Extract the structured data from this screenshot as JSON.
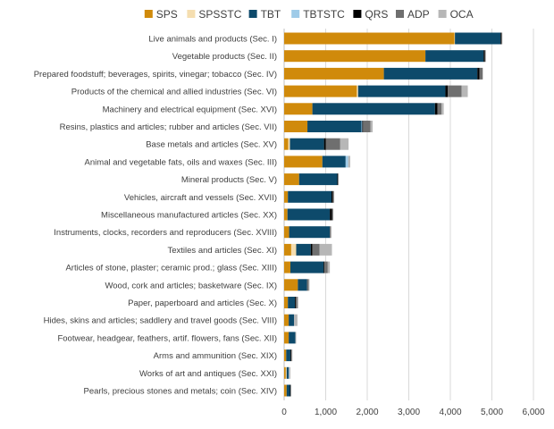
{
  "chart_data": {
    "type": "bar",
    "orientation": "horizontal",
    "stacked": true,
    "title": "",
    "xlabel": "",
    "ylabel": "",
    "xlim": [
      0,
      6000
    ],
    "x_ticks": [
      0,
      1000,
      2000,
      3000,
      4000,
      5000,
      6000
    ],
    "x_tick_labels": [
      "0",
      "1,000",
      "2,000",
      "3,000",
      "4,000",
      "5,000",
      "6,000"
    ],
    "grid": "vertical",
    "legend_position": "top",
    "categories": [
      "Live animals and products (Sec. I)",
      "Vegetable products (Sec. II)",
      "Prepared foodstuff; beverages, spirits, vinegar; tobacco (Sec. IV)",
      "Products of the chemical and allied industries (Sec. VI)",
      "Machinery and electrical equipment (Sec. XVI)",
      "Resins, plastics and articles; rubber and articles (Sec. VII)",
      "Base metals and articles (Sec. XV)",
      "Animal and vegetable fats, oils and waxes (Sec. III)",
      "Mineral products (Sec. V)",
      "Vehicles, aircraft and vessels (Sec. XVII)",
      "Miscellaneous manufactured articles (Sec. XX)",
      "Instruments, clocks, recorders and reproducers (Sec. XVIII)",
      "Textiles and articles (Sec. XI)",
      "Articles of stone, plaster; ceramic prod.; glass (Sec. XIII)",
      "Wood, cork and articles; basketware (Sec. IX)",
      "Paper, paperboard and articles (Sec. X)",
      "Hides, skins and articles; saddlery and travel goods (Sec. VIII)",
      "Footwear, headgear, feathers, artif. flowers, fans (Sec. XII)",
      "Arms and ammunition (Sec. XIX)",
      "Works of art and antiques (Sec. XXI)",
      "Pearls, precious stones and metals; coin (Sec. XIV)"
    ],
    "series": [
      {
        "name": "SPS",
        "color": "#d08a0b",
        "values": [
          4100,
          3400,
          2400,
          1750,
          680,
          560,
          100,
          920,
          360,
          90,
          80,
          120,
          170,
          150,
          330,
          90,
          110,
          110,
          50,
          40,
          60
        ]
      },
      {
        "name": "SPSSTC",
        "color": "#f5deb0",
        "values": [
          10,
          0,
          0,
          30,
          0,
          0,
          40,
          0,
          0,
          0,
          0,
          0,
          120,
          0,
          0,
          0,
          0,
          0,
          0,
          20,
          0
        ]
      },
      {
        "name": "TBT",
        "color": "#0d4a6b",
        "values": [
          1100,
          1400,
          2250,
          2100,
          2950,
          1300,
          820,
          560,
          920,
          1050,
          1020,
          980,
          350,
          800,
          220,
          170,
          130,
          160,
          100,
          50,
          80
        ]
      },
      {
        "name": "TBTSTC",
        "color": "#9fcbe8",
        "values": [
          0,
          0,
          0,
          0,
          0,
          20,
          0,
          60,
          0,
          0,
          0,
          0,
          0,
          0,
          0,
          0,
          0,
          0,
          0,
          10,
          0
        ]
      },
      {
        "name": "QRS",
        "color": "#000000",
        "values": [
          20,
          30,
          50,
          60,
          60,
          20,
          40,
          0,
          20,
          30,
          50,
          0,
          40,
          20,
          0,
          20,
          0,
          0,
          20,
          0,
          20
        ]
      },
      {
        "name": "ADP",
        "color": "#6f6f6f",
        "values": [
          20,
          20,
          80,
          330,
          100,
          180,
          350,
          0,
          0,
          30,
          30,
          30,
          170,
          80,
          40,
          40,
          0,
          0,
          10,
          0,
          0
        ]
      },
      {
        "name": "OCA",
        "color": "#b7b7b7",
        "values": [
          0,
          0,
          0,
          150,
          50,
          50,
          200,
          50,
          0,
          0,
          0,
          0,
          300,
          50,
          20,
          20,
          80,
          20,
          20,
          30,
          0
        ]
      }
    ]
  }
}
